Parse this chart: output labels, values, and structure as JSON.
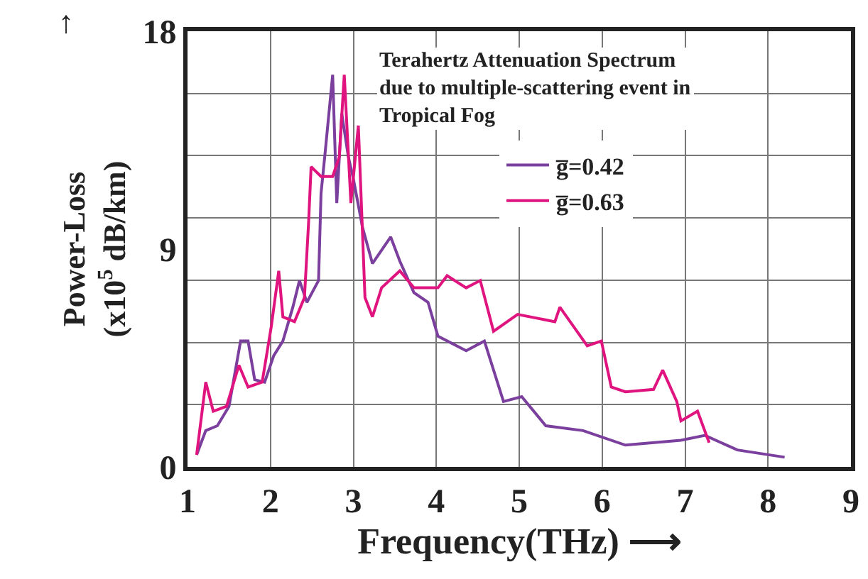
{
  "chart_data": {
    "type": "line",
    "title": "Terahertz Attenuation Spectrum\ndue to multiple-scattering event in\nTropical Fog",
    "xlabel": "Frequency(THz) ⟶",
    "ylabel": "Power-Loss\n(x10$^{5}$ dB/km)",
    "annotations": [
      "↑"
    ],
    "xlim": [
      1,
      9
    ],
    "xticks": [
      1,
      2,
      3,
      4,
      5,
      6,
      7,
      8,
      9
    ],
    "ylim": [
      0,
      18
    ],
    "yticks": [
      0,
      {
        "value": 2.571,
        "label": null
      },
      {
        "value": 5.143,
        "label": null
      },
      {
        "value": 7.714,
        "label": null
      },
      9,
      {
        "value": 10.286,
        "label": null
      },
      {
        "value": 12.857,
        "label": null
      },
      {
        "value": 15.429,
        "label": null
      },
      18
    ],
    "grid": true,
    "legend": "top right",
    "line_style": "solid",
    "marker": "none",
    "series": [
      {
        "name": "g̅=0.42",
        "color": "#7b3f9e",
        "x": [
          1.11,
          1.22,
          1.36,
          1.5,
          1.64,
          1.73,
          1.81,
          1.93,
          2.04,
          2.15,
          2.27,
          2.35,
          2.44,
          2.58,
          2.61,
          2.66,
          2.75,
          2.8,
          2.86,
          2.94,
          3.0,
          3.11,
          3.23,
          3.45,
          3.56,
          3.73,
          3.9,
          4.02,
          4.36,
          4.58,
          4.81,
          5.03,
          5.32,
          5.77,
          6.28,
          6.95,
          7.24,
          7.63,
          8.2
        ],
        "values": [
          0.5,
          1.5,
          1.7,
          2.5,
          5.2,
          5.2,
          3.6,
          3.5,
          4.6,
          5.2,
          6.6,
          7.7,
          6.8,
          7.7,
          11.3,
          13.0,
          16.2,
          10.9,
          14.6,
          12.8,
          11.9,
          9.9,
          8.4,
          9.5,
          8.5,
          7.2,
          6.8,
          5.4,
          4.8,
          5.2,
          2.7,
          2.9,
          1.7,
          1.5,
          0.9,
          1.1,
          1.3,
          0.7,
          0.4
        ]
      },
      {
        "name": "g̅=0.63",
        "color": "#e0147f",
        "x": [
          1.11,
          1.22,
          1.31,
          1.47,
          1.62,
          1.73,
          1.9,
          2.01,
          2.1,
          2.15,
          2.29,
          2.41,
          2.46,
          2.49,
          2.61,
          2.75,
          2.83,
          2.89,
          2.97,
          3.06,
          3.14,
          3.23,
          3.34,
          3.56,
          3.73,
          4.02,
          4.13,
          4.36,
          4.53,
          4.69,
          4.98,
          5.43,
          5.49,
          5.82,
          5.99,
          6.11,
          6.28,
          6.62,
          6.73,
          6.9,
          6.95,
          7.15,
          7.29
        ],
        "values": [
          0.5,
          3.5,
          2.3,
          2.5,
          4.2,
          3.3,
          3.5,
          5.8,
          8.1,
          6.2,
          6.0,
          7.0,
          10.1,
          12.4,
          12.0,
          12.0,
          12.8,
          16.2,
          10.9,
          14.1,
          7.0,
          6.2,
          7.4,
          8.1,
          7.4,
          7.4,
          7.9,
          7.4,
          7.7,
          5.6,
          6.3,
          6.0,
          6.6,
          5.0,
          5.2,
          3.3,
          3.1,
          3.2,
          4.0,
          2.7,
          1.9,
          2.3,
          1.0
        ]
      }
    ]
  }
}
